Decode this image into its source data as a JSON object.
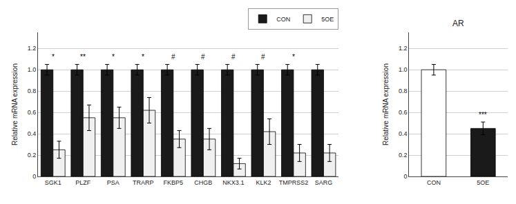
{
  "chart_data": [
    {
      "type": "bar",
      "ylabel": "Relative mRNA expression",
      "categories": [
        "SGK1",
        "PLZF",
        "PSA",
        "TRARP",
        "FKBP5",
        "CHGB",
        "NKX3.1",
        "KLK2",
        "TMPRSS2",
        "SARG"
      ],
      "series": [
        {
          "name": "CON",
          "color": "#1a1a1a",
          "values": [
            1.0,
            1.0,
            1.0,
            1.0,
            1.0,
            1.0,
            1.0,
            1.0,
            1.0,
            1.0
          ],
          "errors": [
            0.05,
            0.05,
            0.05,
            0.05,
            0.05,
            0.05,
            0.05,
            0.05,
            0.05,
            0.05
          ]
        },
        {
          "name": "5OE",
          "color": "#f0f0f0",
          "values": [
            0.25,
            0.55,
            0.55,
            0.62,
            0.35,
            0.35,
            0.12,
            0.42,
            0.22,
            0.22
          ],
          "errors": [
            0.08,
            0.12,
            0.1,
            0.12,
            0.08,
            0.1,
            0.05,
            0.12,
            0.08,
            0.08
          ]
        }
      ],
      "annotations": [
        "*",
        "**",
        "*",
        "*",
        "#",
        "#",
        "#",
        "#",
        "*",
        null
      ],
      "ylim": [
        0,
        1.35
      ],
      "yticks": [
        0,
        0.2,
        0.4,
        0.6,
        0.8,
        {
          "value": 1.0,
          "label": "1.0"
        },
        1.2
      ],
      "grid": true,
      "legend": "upper right"
    },
    {
      "type": "bar",
      "title": "AR",
      "ylabel": "Relative mRNA expression",
      "categories": [
        "CON",
        "5OE"
      ],
      "values": [
        1.0,
        0.45
      ],
      "errors": [
        0.05,
        0.06
      ],
      "colors": [
        "#ffffff",
        "#1a1a1a"
      ],
      "annotations": [
        null,
        "***"
      ],
      "ylim": [
        0,
        1.35
      ],
      "yticks": [
        0,
        0.2,
        0.4,
        0.6,
        0.8,
        {
          "value": 1.0,
          "label": "1.0"
        },
        1.2
      ],
      "grid": true
    }
  ]
}
